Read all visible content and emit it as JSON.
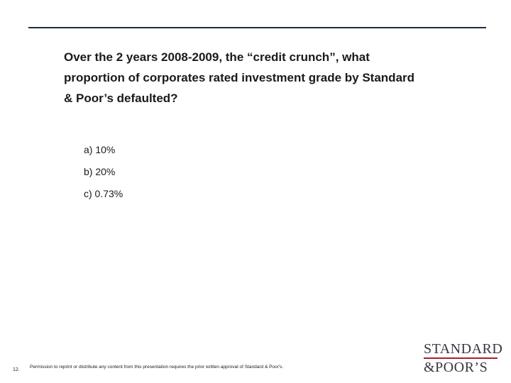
{
  "slide": {
    "question_lines": [
      "Over the 2 years 2008-2009, the “credit crunch”, what",
      "proportion of corporates rated investment grade by Standard",
      "& Poor’s defaulted?"
    ],
    "options": [
      "a) 10%",
      "b) 20%",
      "c) 0.73%"
    ],
    "footer": {
      "page_number": "12.",
      "permission": "Permission to reprint or distribute any content from this presentation requires the prior written approval of Standard & Poor's."
    },
    "logo": {
      "top": "STANDARD",
      "bottom": "&POOR’S"
    }
  }
}
